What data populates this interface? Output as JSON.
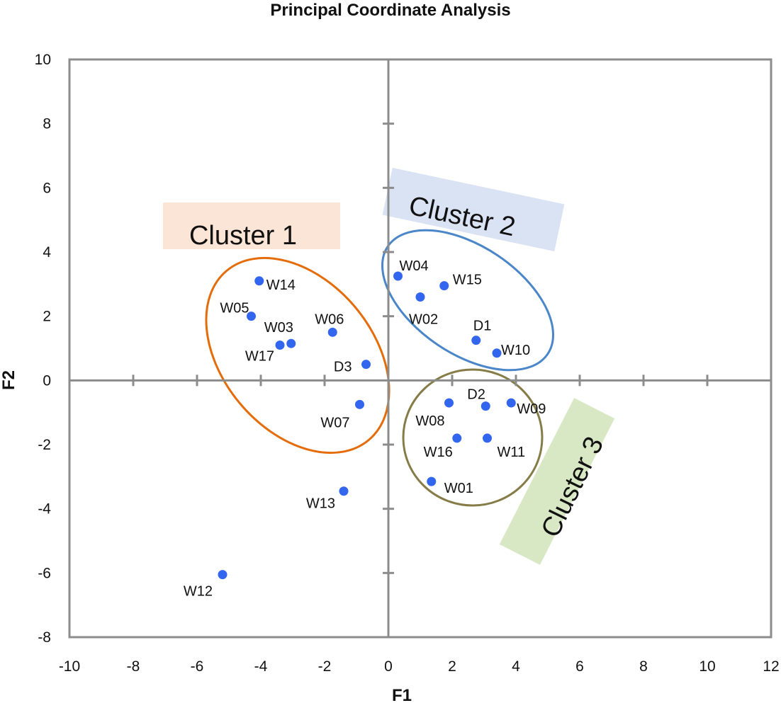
{
  "chart_data": {
    "type": "scatter",
    "title": "Principal Coordinate Analysis",
    "xlabel": "F1",
    "ylabel": "F2",
    "xlim": [
      -10,
      12
    ],
    "ylim": [
      -8,
      10
    ],
    "xticks": [
      -10,
      -8,
      -6,
      -4,
      -2,
      0,
      2,
      4,
      6,
      8,
      10,
      12
    ],
    "yticks": [
      -8,
      -6,
      -4,
      -2,
      0,
      2,
      4,
      6,
      8,
      10
    ],
    "point_color": "#3366ee",
    "points": [
      {
        "label": "W14",
        "x": -4.05,
        "y": 3.1
      },
      {
        "label": "W05",
        "x": -4.3,
        "y": 2.0
      },
      {
        "label": "W03",
        "x": -3.05,
        "y": 1.15
      },
      {
        "label": "W17",
        "x": -3.4,
        "y": 1.1
      },
      {
        "label": "W06",
        "x": -1.75,
        "y": 1.5
      },
      {
        "label": "D3",
        "x": -0.7,
        "y": 0.5
      },
      {
        "label": "W07",
        "x": -0.9,
        "y": -0.75
      },
      {
        "label": "W13",
        "x": -1.4,
        "y": -3.45
      },
      {
        "label": "W12",
        "x": -5.2,
        "y": -6.05
      },
      {
        "label": "W04",
        "x": 0.3,
        "y": 3.25
      },
      {
        "label": "W15",
        "x": 1.75,
        "y": 2.95
      },
      {
        "label": "W02",
        "x": 1.0,
        "y": 2.6
      },
      {
        "label": "D1",
        "x": 2.75,
        "y": 1.25
      },
      {
        "label": "W10",
        "x": 3.4,
        "y": 0.85
      },
      {
        "label": "D2",
        "x": 3.05,
        "y": -0.8
      },
      {
        "label": "W09",
        "x": 3.85,
        "y": -0.7
      },
      {
        "label": "W08",
        "x": 1.9,
        "y": -0.7
      },
      {
        "label": "W16",
        "x": 2.15,
        "y": -1.8
      },
      {
        "label": "W11",
        "x": 3.1,
        "y": -1.8
      },
      {
        "label": "W01",
        "x": 1.35,
        "y": -3.15
      }
    ],
    "clusters": [
      {
        "name": "Cluster 1",
        "color": "#e46c0a",
        "fill": "#fbe5d6"
      },
      {
        "name": "Cluster 2",
        "color": "#4a86c8",
        "fill": "#dae3f3"
      },
      {
        "name": "Cluster 3",
        "color": "#857c48",
        "fill": "#d9e8c4"
      }
    ]
  }
}
